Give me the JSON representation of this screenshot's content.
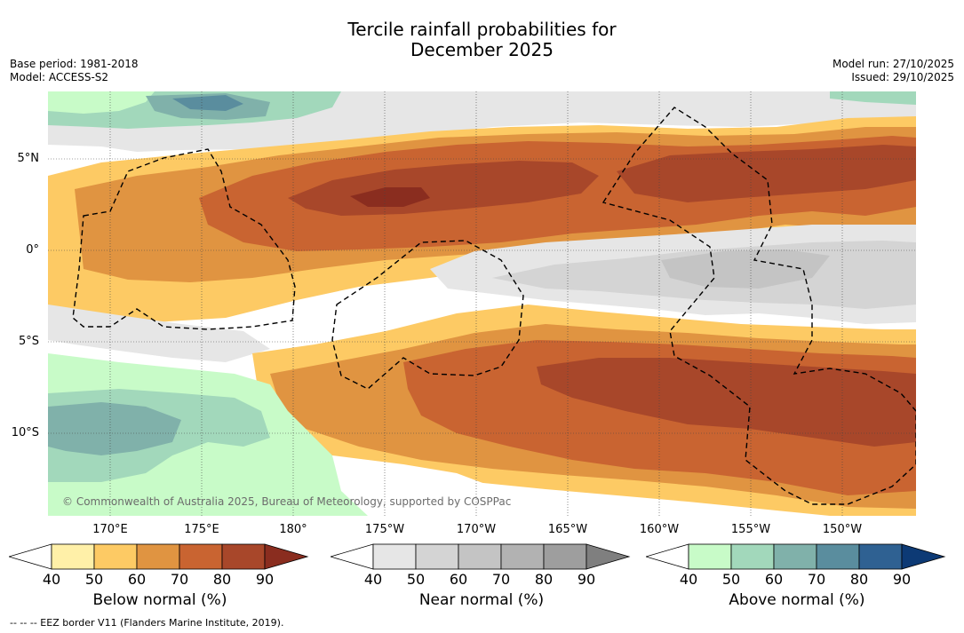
{
  "header": {
    "title_line1": "Tercile rainfall probabilities for",
    "title_line2": "December 2025",
    "base_period": "Base period: 1981-2018",
    "model": "Model: ACCESS-S2",
    "model_run": "Model run: 27/10/2025",
    "issued": "Issued: 29/10/2025"
  },
  "map": {
    "credit": "© Commonwealth of Australia 2025, Bureau of Meteorology, supported by COSPPac",
    "lat_labels": [
      "5°N",
      "0°",
      "5°S",
      "10°S"
    ],
    "lon_labels": [
      "170°E",
      "175°E",
      "180°",
      "175°W",
      "170°W",
      "165°W",
      "160°W",
      "155°W",
      "150°W"
    ]
  },
  "colorbars": {
    "below": {
      "title": "Below normal (%)",
      "ticks": [
        "40",
        "50",
        "60",
        "70",
        "80",
        "90"
      ],
      "colors": [
        "#fff0a8",
        "#fdca64",
        "#e09441",
        "#c96431",
        "#a8472a",
        "#8a2d1f"
      ]
    },
    "near": {
      "title": "Near normal (%)",
      "ticks": [
        "40",
        "50",
        "60",
        "70",
        "80",
        "90"
      ],
      "colors": [
        "#e6e6e6",
        "#d4d4d4",
        "#c4c4c4",
        "#b2b2b2",
        "#9e9e9e",
        "#7f7f7f"
      ]
    },
    "above": {
      "title": "Above normal (%)",
      "ticks": [
        "40",
        "50",
        "60",
        "70",
        "80",
        "90"
      ],
      "colors": [
        "#c8fbc8",
        "#a2d8bb",
        "#80b1aa",
        "#5a8d9e",
        "#2f6192",
        "#0d3a75"
      ]
    }
  },
  "footnote": "--  --  -- EEZ border V11 (Flanders Marine Institute, 2019)."
}
